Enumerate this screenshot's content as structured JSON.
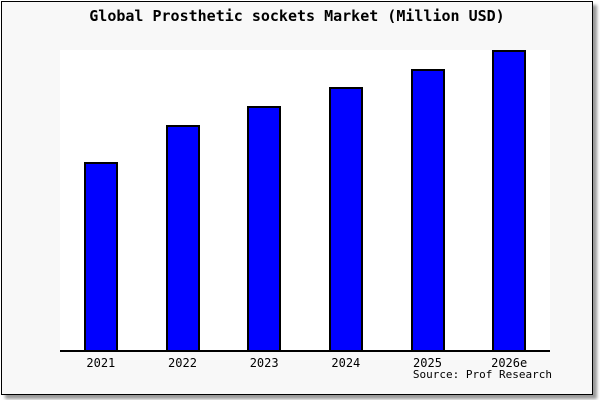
{
  "window": {
    "page_background": "#ffffff",
    "frame_background": "#f8f8f8",
    "frame_border_color": "#000000",
    "shadow_color": "#999999"
  },
  "footer": {
    "source": "Source: Prof Research"
  },
  "chart_data": {
    "type": "bar",
    "title": "Global Prosthetic sockets Market (Million USD)",
    "categories": [
      "2021",
      "2022",
      "2023",
      "2024",
      "2025",
      "2026e"
    ],
    "values": [
      188,
      225,
      244,
      263,
      281,
      300
    ],
    "units": "relative bar height in px (no y-axis scale or value labels shown)",
    "xlabel": "",
    "ylabel": "",
    "ylim": [
      0,
      300
    ],
    "grid": false,
    "legend": false,
    "bar_color": "#0000ff",
    "bar_border_color": "#000000",
    "plot_background": "#ffffff",
    "axis_line_color": "#000000",
    "text_color": "#000000"
  }
}
